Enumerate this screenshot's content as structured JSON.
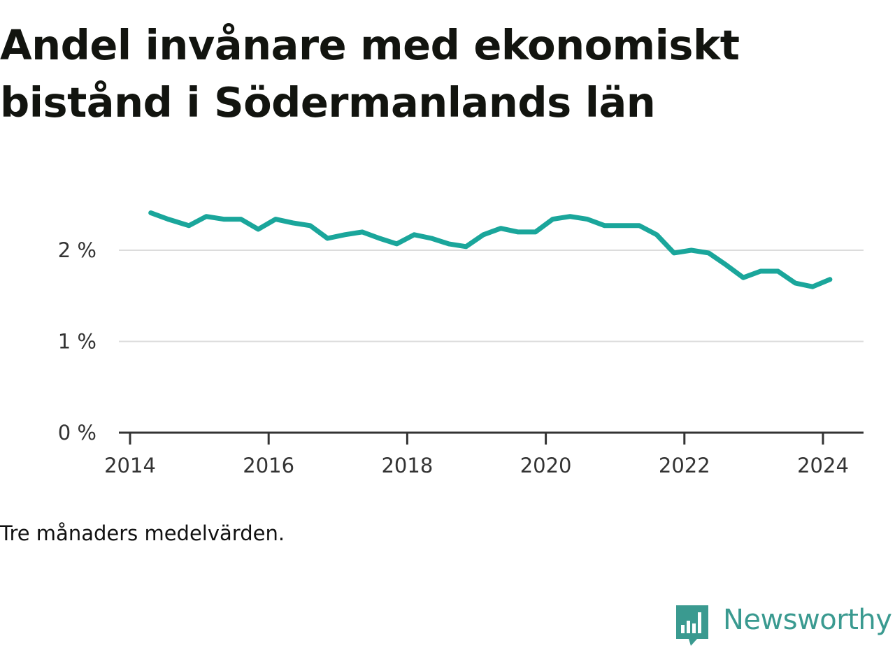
{
  "title": "Andel invånare med ekonomiskt bistånd i Södermanlands län",
  "note": "Tre månaders medelvärden.",
  "brand": {
    "name": "Newsworthy",
    "icon": "bar-chart-speech-bubble-icon",
    "color": "#3a9a90"
  },
  "chart_data": {
    "type": "line",
    "title": "Andel invånare med ekonomiskt bistånd i Södermanlands län",
    "xlabel": "",
    "ylabel": "",
    "x_ticks": [
      "2014",
      "2016",
      "2018",
      "2020",
      "2022",
      "2024"
    ],
    "y_ticks": [
      "0 %",
      "1 %",
      "2 %"
    ],
    "xlim": [
      2014,
      2024.6
    ],
    "ylim": [
      0,
      2.5
    ],
    "grid": true,
    "line_color": "#1aa69b",
    "series": [
      {
        "x": [
          2014.3,
          2014.55,
          2014.85,
          2015.1,
          2015.35,
          2015.6,
          2015.85,
          2016.1,
          2016.35,
          2016.6,
          2016.85,
          2017.1,
          2017.35,
          2017.6,
          2017.85,
          2018.1,
          2018.35,
          2018.6,
          2018.85,
          2019.1,
          2019.35,
          2019.6,
          2019.85,
          2020.1,
          2020.35,
          2020.6,
          2020.85,
          2021.1,
          2021.35,
          2021.6,
          2021.85,
          2022.1,
          2022.35,
          2022.6,
          2022.85,
          2023.1,
          2023.35,
          2023.6,
          2023.85,
          2024.1
        ],
        "values": [
          2.41,
          2.34,
          2.27,
          2.37,
          2.34,
          2.34,
          2.23,
          2.34,
          2.3,
          2.27,
          2.13,
          2.17,
          2.2,
          2.13,
          2.07,
          2.17,
          2.13,
          2.07,
          2.04,
          2.17,
          2.24,
          2.2,
          2.2,
          2.34,
          2.37,
          2.34,
          2.27,
          2.27,
          2.27,
          2.17,
          1.97,
          2.0,
          1.97,
          1.84,
          1.7,
          1.77,
          1.77,
          1.64,
          1.6,
          1.68
        ]
      }
    ]
  }
}
